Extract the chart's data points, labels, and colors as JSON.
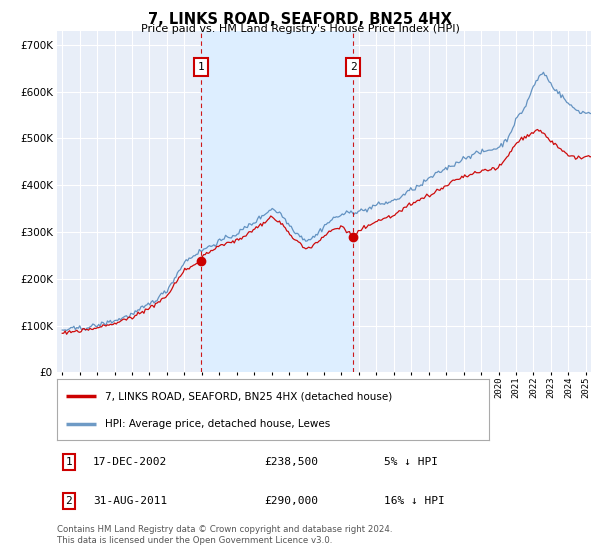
{
  "title": "7, LINKS ROAD, SEAFORD, BN25 4HX",
  "subtitle": "Price paid vs. HM Land Registry's House Price Index (HPI)",
  "ytick_values": [
    0,
    100000,
    200000,
    300000,
    400000,
    500000,
    600000,
    700000
  ],
  "ylim": [
    0,
    730000
  ],
  "xlim_start": 1994.7,
  "xlim_end": 2025.3,
  "marker1_x": 2002.96,
  "marker1_y": 238500,
  "marker2_x": 2011.67,
  "marker2_y": 290000,
  "sale1_label": "1",
  "sale2_label": "2",
  "sale1_date": "17-DEC-2002",
  "sale1_price": "£238,500",
  "sale1_hpi": "5% ↓ HPI",
  "sale2_date": "31-AUG-2011",
  "sale2_price": "£290,000",
  "sale2_hpi": "16% ↓ HPI",
  "legend_line1": "7, LINKS ROAD, SEAFORD, BN25 4HX (detached house)",
  "legend_line2": "HPI: Average price, detached house, Lewes",
  "footer": "Contains HM Land Registry data © Crown copyright and database right 2024.\nThis data is licensed under the Open Government Licence v3.0.",
  "line_color_price": "#cc0000",
  "line_color_hpi": "#5588bb",
  "shade_color": "#ddeeff",
  "bg_color": "#ffffff",
  "plot_bg_color": "#e8eef8",
  "grid_color": "#ffffff",
  "dashed_color": "#cc0000"
}
